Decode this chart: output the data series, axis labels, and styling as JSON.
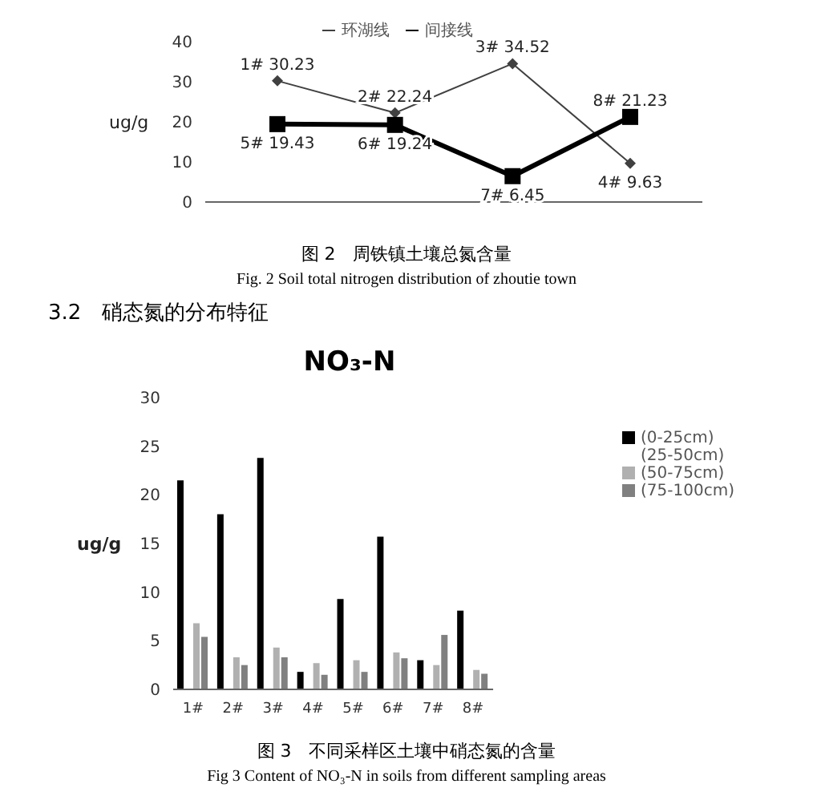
{
  "chart_data": [
    {
      "type": "line",
      "ylabel": "ug/g",
      "categories": [
        null,
        null,
        null,
        null
      ],
      "ylim": [
        0,
        40
      ],
      "yticks": [
        0,
        10,
        20,
        30,
        40
      ],
      "legend": "top",
      "grid": false,
      "annotations": [
        "图 2　周铁镇土壤总氮含量",
        "Fig. 2 Soil total nitrogen distribution of zhoutie town",
        "3.2　硝态氮的分布特征"
      ],
      "series": [
        {
          "name": "环湖线",
          "color": "#404040",
          "marker": "diamond",
          "values": [
            30.23,
            22.24,
            34.52,
            9.63
          ],
          "value_labels": [
            "1#  30.23",
            "2#  22.24",
            "3#  34.52",
            "4#  9.63"
          ]
        },
        {
          "name": "间接线",
          "color": "#000000",
          "marker": "square",
          "values": [
            19.43,
            19.24,
            6.45,
            21.23
          ],
          "value_labels": [
            "5#  19.43",
            "6#  19.24",
            "7#  6.45",
            "8#  21.23"
          ]
        }
      ]
    },
    {
      "type": "bar",
      "title": "NO₃-N",
      "ylabel": "ug/g",
      "categories": [
        "1#",
        "2#",
        "3#",
        "4#",
        "5#",
        "6#",
        "7#",
        "8#"
      ],
      "ylim": [
        0,
        30
      ],
      "yticks": [
        0,
        5,
        10,
        15,
        20,
        25,
        30
      ],
      "legend": "right",
      "grid": false,
      "annotations": [
        "图 3　不同采样区土壤中硝态氮的含量",
        "Fig 3 Content of NO₃-N in soils from different sampling areas"
      ],
      "series": [
        {
          "name": "(0-25cm)",
          "color": "#000000",
          "values": [
            21.5,
            18.0,
            23.8,
            1.8,
            9.3,
            15.7,
            3.0,
            8.1
          ]
        },
        {
          "name": "(25-50cm)",
          "values": [
            null,
            null,
            null,
            null,
            null,
            null,
            null,
            null
          ]
        },
        {
          "name": "(50-75cm)",
          "color": "#b0b0b0",
          "values": [
            6.8,
            3.3,
            4.3,
            2.7,
            3.0,
            3.8,
            2.5,
            2.0
          ]
        },
        {
          "name": "(75-100cm)",
          "color": "#808080",
          "values": [
            5.4,
            2.5,
            3.3,
            1.5,
            1.8,
            3.2,
            5.6,
            1.6
          ]
        }
      ]
    }
  ]
}
